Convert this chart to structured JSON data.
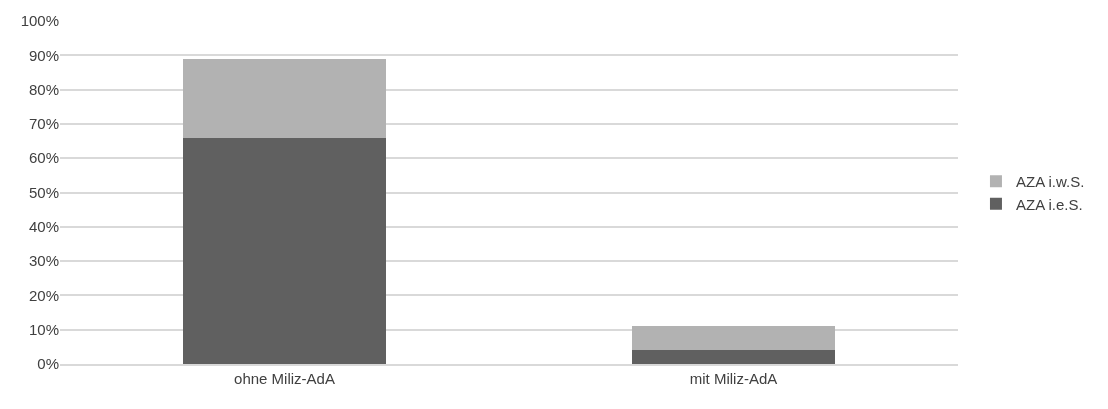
{
  "chart_data": {
    "type": "bar",
    "stacked": true,
    "categories": [
      "ohne Miliz-AdA",
      "mit Miliz-AdA"
    ],
    "series": [
      {
        "name": "AZA i.e.S.",
        "color": "#606060",
        "values": [
          66,
          4
        ]
      },
      {
        "name": "AZA i.w.S.",
        "color": "#b2b2b2",
        "values": [
          23,
          7
        ]
      }
    ],
    "ylim": [
      0,
      100
    ],
    "yticks": [
      {
        "value": 0,
        "label": "0%"
      },
      {
        "value": 10,
        "label": "10%"
      },
      {
        "value": 20,
        "label": "20%"
      },
      {
        "value": 30,
        "label": "30%"
      },
      {
        "value": 40,
        "label": "40%"
      },
      {
        "value": 50,
        "label": "50%"
      },
      {
        "value": 60,
        "label": "60%"
      },
      {
        "value": 70,
        "label": "70%"
      },
      {
        "value": 80,
        "label": "80%"
      },
      {
        "value": 90,
        "label": "90%"
      },
      {
        "value": 100,
        "label": "100%"
      }
    ],
    "grid": "y",
    "legend": "right"
  }
}
